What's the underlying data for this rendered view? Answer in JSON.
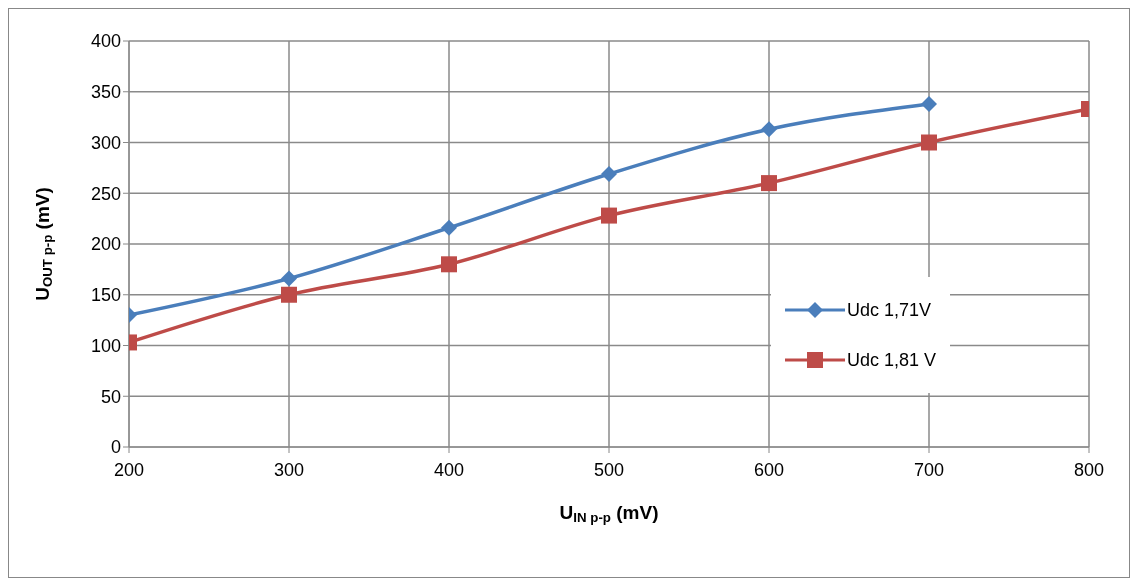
{
  "chart_data": {
    "type": "line",
    "xlabel": "U$_{IN p-p}$ (mV)",
    "ylabel": "U$_{OUT p-p}$ (mV)",
    "x": [
      200,
      300,
      400,
      500,
      600,
      700,
      800
    ],
    "series": [
      {
        "name": "Udc 1,71V",
        "color": "#4a7ebb",
        "marker": "diamond",
        "values": [
          130,
          166,
          216,
          269,
          313,
          338,
          null
        ]
      },
      {
        "name": "Udc 1,81 V",
        "color": "#be4b48",
        "marker": "square",
        "values": [
          103,
          150,
          180,
          228,
          260,
          300,
          333
        ]
      }
    ],
    "xlim": [
      200,
      800
    ],
    "xticks": [
      200,
      300,
      400,
      500,
      600,
      700,
      800
    ],
    "ylim": [
      0,
      400
    ],
    "yticks": [
      0,
      50,
      100,
      150,
      200,
      250,
      300,
      350,
      400
    ],
    "grid": true,
    "legend": "right",
    "line_style": "solid"
  }
}
